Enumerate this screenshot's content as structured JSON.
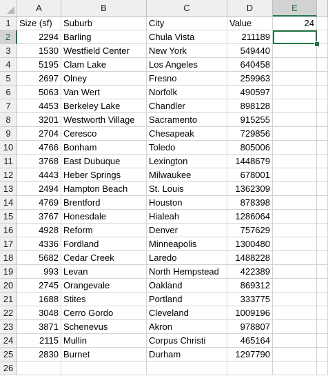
{
  "sheet": {
    "column_headers": [
      "A",
      "B",
      "C",
      "D",
      "E"
    ],
    "selected_column": "E",
    "selected_row": 2,
    "rows": [
      {
        "n": "1",
        "a": "Size (sf)",
        "b": "Suburb",
        "c": "City",
        "d": "Value",
        "e": "24"
      },
      {
        "n": "2",
        "a": "2294",
        "b": "Barling",
        "c": "Chula Vista",
        "d": "211189",
        "e": ""
      },
      {
        "n": "3",
        "a": "1530",
        "b": "Westfield Center",
        "c": "New York",
        "d": "549440",
        "e": ""
      },
      {
        "n": "4",
        "a": "5195",
        "b": "Clam Lake",
        "c": "Los Angeles",
        "d": "640458",
        "e": ""
      },
      {
        "n": "5",
        "a": "2697",
        "b": "Olney",
        "c": "Fresno",
        "d": "259963",
        "e": ""
      },
      {
        "n": "6",
        "a": "5063",
        "b": "Van Wert",
        "c": "Norfolk",
        "d": "490597",
        "e": ""
      },
      {
        "n": "7",
        "a": "4453",
        "b": "Berkeley Lake",
        "c": "Chandler",
        "d": "898128",
        "e": ""
      },
      {
        "n": "8",
        "a": "3201",
        "b": "Westworth Village",
        "c": "Sacramento",
        "d": "915255",
        "e": ""
      },
      {
        "n": "9",
        "a": "2704",
        "b": "Ceresco",
        "c": "Chesapeak",
        "d": "729856",
        "e": ""
      },
      {
        "n": "10",
        "a": "4766",
        "b": "Bonham",
        "c": "Toledo",
        "d": "805006",
        "e": ""
      },
      {
        "n": "11",
        "a": "3768",
        "b": "East Dubuque",
        "c": "Lexington",
        "d": "1448679",
        "e": ""
      },
      {
        "n": "12",
        "a": "4443",
        "b": "Heber Springs",
        "c": "Milwaukee",
        "d": "678001",
        "e": ""
      },
      {
        "n": "13",
        "a": "2494",
        "b": "Hampton Beach",
        "c": "St. Louis",
        "d": "1362309",
        "e": ""
      },
      {
        "n": "14",
        "a": "4769",
        "b": "Brentford",
        "c": "Houston",
        "d": "878398",
        "e": ""
      },
      {
        "n": "15",
        "a": "3767",
        "b": "Honesdale",
        "c": "Hialeah",
        "d": "1286064",
        "e": ""
      },
      {
        "n": "16",
        "a": "4928",
        "b": "Reform",
        "c": "Denver",
        "d": "757629",
        "e": ""
      },
      {
        "n": "17",
        "a": "4336",
        "b": "Fordland",
        "c": "Minneapolis",
        "d": "1300480",
        "e": ""
      },
      {
        "n": "18",
        "a": "5682",
        "b": "Cedar Creek",
        "c": "Laredo",
        "d": "1488228",
        "e": ""
      },
      {
        "n": "19",
        "a": "993",
        "b": "Levan",
        "c": "North Hempstead",
        "d": "422389",
        "e": ""
      },
      {
        "n": "20",
        "a": "2745",
        "b": "Orangevale",
        "c": "Oakland",
        "d": "869312",
        "e": ""
      },
      {
        "n": "21",
        "a": "1688",
        "b": "Stites",
        "c": "Portland",
        "d": "333775",
        "e": ""
      },
      {
        "n": "22",
        "a": "3048",
        "b": "Cerro Gordo",
        "c": "Cleveland",
        "d": "1009196",
        "e": ""
      },
      {
        "n": "23",
        "a": "3871",
        "b": "Schenevus",
        "c": "Akron",
        "d": "978807",
        "e": ""
      },
      {
        "n": "24",
        "a": "2115",
        "b": "Mullin",
        "c": "Corpus Christi",
        "d": "465164",
        "e": ""
      },
      {
        "n": "25",
        "a": "2830",
        "b": "Burnet",
        "c": "Durham",
        "d": "1297790",
        "e": ""
      },
      {
        "n": "26",
        "a": "",
        "b": "",
        "c": "",
        "d": "",
        "e": ""
      }
    ]
  },
  "colors": {
    "accent": "#217346",
    "header_bg": "#efefef",
    "grid_line": "#d4d4d4"
  },
  "icons": {
    "corner": "select-all-triangle-icon"
  }
}
